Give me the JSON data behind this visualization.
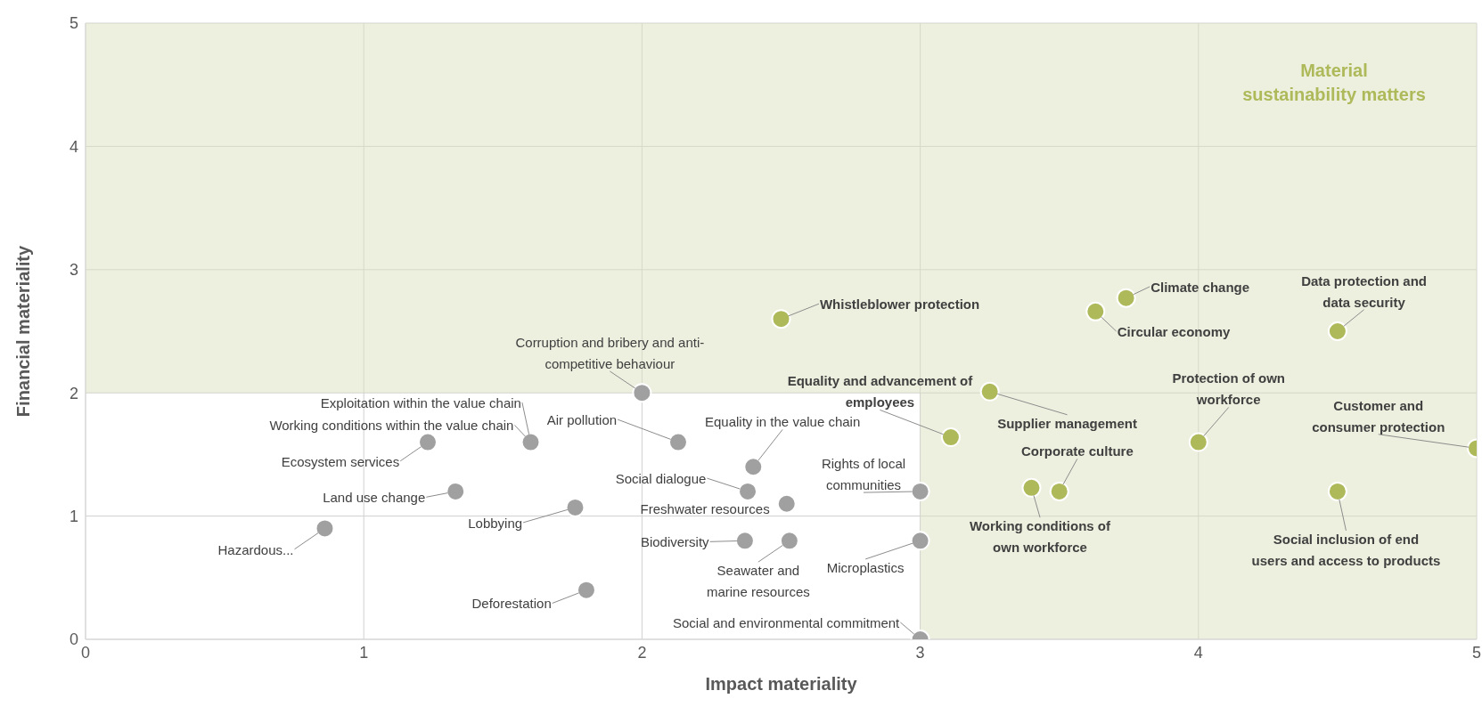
{
  "chart_data": {
    "type": "scatter",
    "xlabel": "Impact materiality",
    "ylabel": "Financial materiality",
    "xlim": [
      0,
      5
    ],
    "ylim": [
      0,
      5
    ],
    "xticks": [
      0,
      1,
      2,
      3,
      4,
      5
    ],
    "yticks": [
      0,
      1,
      2,
      3,
      4,
      5
    ],
    "grid": true,
    "legend": false,
    "marker": "circle",
    "series": [
      {
        "color": "#a0a0a0",
        "x": [
          0.86,
          1.23,
          1.33,
          1.6,
          2.0,
          2.13,
          2.4,
          2.38,
          2.52,
          1.76,
          2.37,
          2.53,
          1.8,
          3.0,
          3.0,
          3.0
        ],
        "values": [
          0.9,
          1.6,
          1.2,
          1.6,
          2.0,
          1.6,
          1.4,
          1.2,
          1.1,
          1.07,
          0.8,
          0.8,
          0.4,
          1.2,
          0.8,
          0.0
        ]
      },
      {
        "color": "#aeb95a",
        "x": [
          2.5,
          3.74,
          3.63,
          4.5,
          3.11,
          3.25,
          4.0,
          5.0,
          3.5,
          3.4,
          4.5
        ],
        "values": [
          2.6,
          2.77,
          2.66,
          2.5,
          1.64,
          2.01,
          1.6,
          1.55,
          1.2,
          1.23,
          1.2
        ]
      }
    ],
    "bands": [
      {
        "axis": "x",
        "from": 3,
        "to": 5,
        "color": "#dbe2bf"
      },
      {
        "axis": "y",
        "from": 2,
        "to": 5,
        "color": "#dbe2bf"
      }
    ],
    "annotations": [
      {
        "text": "Hazardous...",
        "x": 0.86,
        "y": 0.9
      },
      {
        "text": "Ecosystem services",
        "x": 1.23,
        "y": 1.6
      },
      {
        "text": "Land use change",
        "x": 1.33,
        "y": 1.2
      },
      {
        "text": "Exploitation within the value chain",
        "x": 1.6,
        "y": 1.6
      },
      {
        "text": "Working conditions within the value chain",
        "x": 1.6,
        "y": 1.6
      },
      {
        "text": "Corruption and bribery and anti-competitive behaviour",
        "x": 2.0,
        "y": 2.0
      },
      {
        "text": "Air pollution",
        "x": 2.13,
        "y": 1.6
      },
      {
        "text": "Equality in the value chain",
        "x": 2.4,
        "y": 1.4
      },
      {
        "text": "Social dialogue",
        "x": 2.38,
        "y": 1.2
      },
      {
        "text": "Freshwater resources",
        "x": 2.52,
        "y": 1.1
      },
      {
        "text": "Lobbying",
        "x": 1.76,
        "y": 1.07
      },
      {
        "text": "Biodiversity",
        "x": 2.37,
        "y": 0.8
      },
      {
        "text": "Seawater and marine resources",
        "x": 2.53,
        "y": 0.8
      },
      {
        "text": "Deforestation",
        "x": 1.8,
        "y": 0.4
      },
      {
        "text": "Rights of local communities",
        "x": 3.0,
        "y": 1.2
      },
      {
        "text": "Microplastics",
        "x": 3.0,
        "y": 0.8
      },
      {
        "text": "Social and environmental commitment",
        "x": 3.0,
        "y": 0.0
      },
      {
        "text": "Whistleblower protection",
        "x": 2.5,
        "y": 2.6
      },
      {
        "text": "Climate change",
        "x": 3.74,
        "y": 2.77
      },
      {
        "text": "Circular economy",
        "x": 3.63,
        "y": 2.66
      },
      {
        "text": "Data protection and data security",
        "x": 4.5,
        "y": 2.5
      },
      {
        "text": "Equality and advancement of employees",
        "x": 3.11,
        "y": 1.64
      },
      {
        "text": "Supplier management",
        "x": 3.25,
        "y": 2.01
      },
      {
        "text": "Protection of own workforce",
        "x": 4.0,
        "y": 1.6
      },
      {
        "text": "Customer and consumer protection",
        "x": 5.0,
        "y": 1.55
      },
      {
        "text": "Corporate culture",
        "x": 3.5,
        "y": 1.2
      },
      {
        "text": "Working conditions of own workforce",
        "x": 3.4,
        "y": 1.23
      },
      {
        "text": "Social inclusion of end users and access to products",
        "x": 4.5,
        "y": 1.2
      },
      "Material sustainability matters"
    ]
  }
}
